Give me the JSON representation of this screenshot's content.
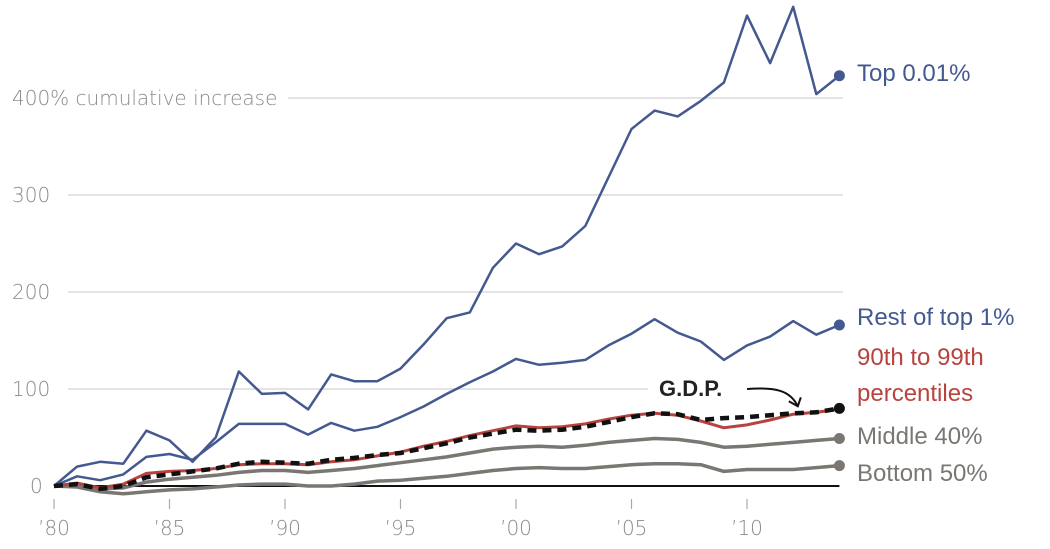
{
  "chart_data": {
    "type": "line",
    "title": "",
    "xlabel": "",
    "ylabel": "400% cumulative increase",
    "ylim": [
      0,
      500
    ],
    "xlim": [
      1980,
      2014
    ],
    "grid": true,
    "y_ticks": [
      {
        "value": 0,
        "label": "0"
      },
      {
        "value": 100,
        "label": "100"
      },
      {
        "value": 200,
        "label": "200"
      },
      {
        "value": 300,
        "label": "300"
      },
      {
        "value": 400,
        "label": "400% cumulative increase"
      }
    ],
    "x_ticks": [
      {
        "value": 1980,
        "label": "’80"
      },
      {
        "value": 1985,
        "label": "’85"
      },
      {
        "value": 1990,
        "label": "’90"
      },
      {
        "value": 1995,
        "label": "’95"
      },
      {
        "value": 2000,
        "label": "’00"
      },
      {
        "value": 2005,
        "label": "’05"
      },
      {
        "value": 2010,
        "label": "’10"
      }
    ],
    "x": [
      1980,
      1981,
      1982,
      1983,
      1984,
      1985,
      1986,
      1987,
      1988,
      1989,
      1990,
      1991,
      1992,
      1993,
      1994,
      1995,
      1996,
      1997,
      1998,
      1999,
      2000,
      2001,
      2002,
      2003,
      2004,
      2005,
      2006,
      2007,
      2008,
      2009,
      2010,
      2011,
      2012,
      2013,
      2014
    ],
    "series": [
      {
        "name": "Top 0.01%",
        "label_lines": [
          "Top 0.01%"
        ],
        "color": "#44598f",
        "style": "solid",
        "values": [
          0,
          20,
          25,
          23,
          57,
          47,
          25,
          50,
          118,
          95,
          96,
          79,
          115,
          108,
          108,
          121,
          146,
          173,
          179,
          225,
          250,
          239,
          247,
          268,
          318,
          368,
          387,
          381,
          397,
          416,
          485,
          436,
          494,
          404,
          423
        ]
      },
      {
        "name": "Rest of top 1%",
        "label_lines": [
          "Rest of top 1%"
        ],
        "color": "#44598f",
        "style": "solid",
        "values": [
          0,
          10,
          6,
          12,
          30,
          33,
          27,
          45,
          64,
          64,
          64,
          53,
          65,
          57,
          61,
          71,
          82,
          95,
          107,
          118,
          131,
          125,
          127,
          130,
          145,
          157,
          172,
          158,
          149,
          130,
          145,
          154,
          170,
          156,
          166
        ]
      },
      {
        "name": "90th to 99th percentiles",
        "label_lines": [
          "90th to 99th",
          "percentiles"
        ],
        "color": "#b8433e",
        "style": "solid",
        "values": [
          0,
          3,
          -2,
          2,
          13,
          15,
          16,
          18,
          22,
          23,
          23,
          22,
          25,
          27,
          31,
          35,
          41,
          46,
          52,
          57,
          62,
          60,
          61,
          64,
          69,
          73,
          75,
          73,
          67,
          60,
          63,
          68,
          74,
          76,
          79
        ]
      },
      {
        "name": "G.D.P.",
        "label_lines": [
          "G.D.P."
        ],
        "color": "#111111",
        "style": "dashed",
        "values": [
          0,
          2,
          -3,
          0,
          9,
          12,
          15,
          18,
          23,
          25,
          24,
          23,
          27,
          29,
          32,
          34,
          39,
          44,
          50,
          54,
          58,
          57,
          58,
          61,
          66,
          71,
          75,
          74,
          68,
          70,
          71,
          73,
          75,
          76,
          80
        ]
      },
      {
        "name": "Middle 40%",
        "label_lines": [
          "Middle 40%"
        ],
        "color": "#7a7773",
        "style": "solid",
        "values": [
          0,
          1,
          -3,
          -2,
          4,
          7,
          9,
          11,
          14,
          16,
          16,
          14,
          16,
          18,
          21,
          24,
          27,
          30,
          34,
          38,
          40,
          41,
          40,
          42,
          45,
          47,
          49,
          48,
          45,
          40,
          41,
          43,
          45,
          47,
          49
        ]
      },
      {
        "name": "Bottom 50%",
        "label_lines": [
          "Bottom 50%"
        ],
        "color": "#7a7773",
        "style": "solid",
        "values": [
          0,
          -1,
          -6,
          -8,
          -6,
          -4,
          -3,
          -1,
          1,
          2,
          2,
          0,
          0,
          2,
          5,
          6,
          8,
          10,
          13,
          16,
          18,
          19,
          18,
          18,
          20,
          22,
          23,
          23,
          22,
          15,
          17,
          17,
          17,
          19,
          21
        ]
      }
    ],
    "annotations": [
      {
        "text": "G.D.P.",
        "arrow_to": {
          "x": 2012.2,
          "y": 76
        }
      }
    ]
  }
}
